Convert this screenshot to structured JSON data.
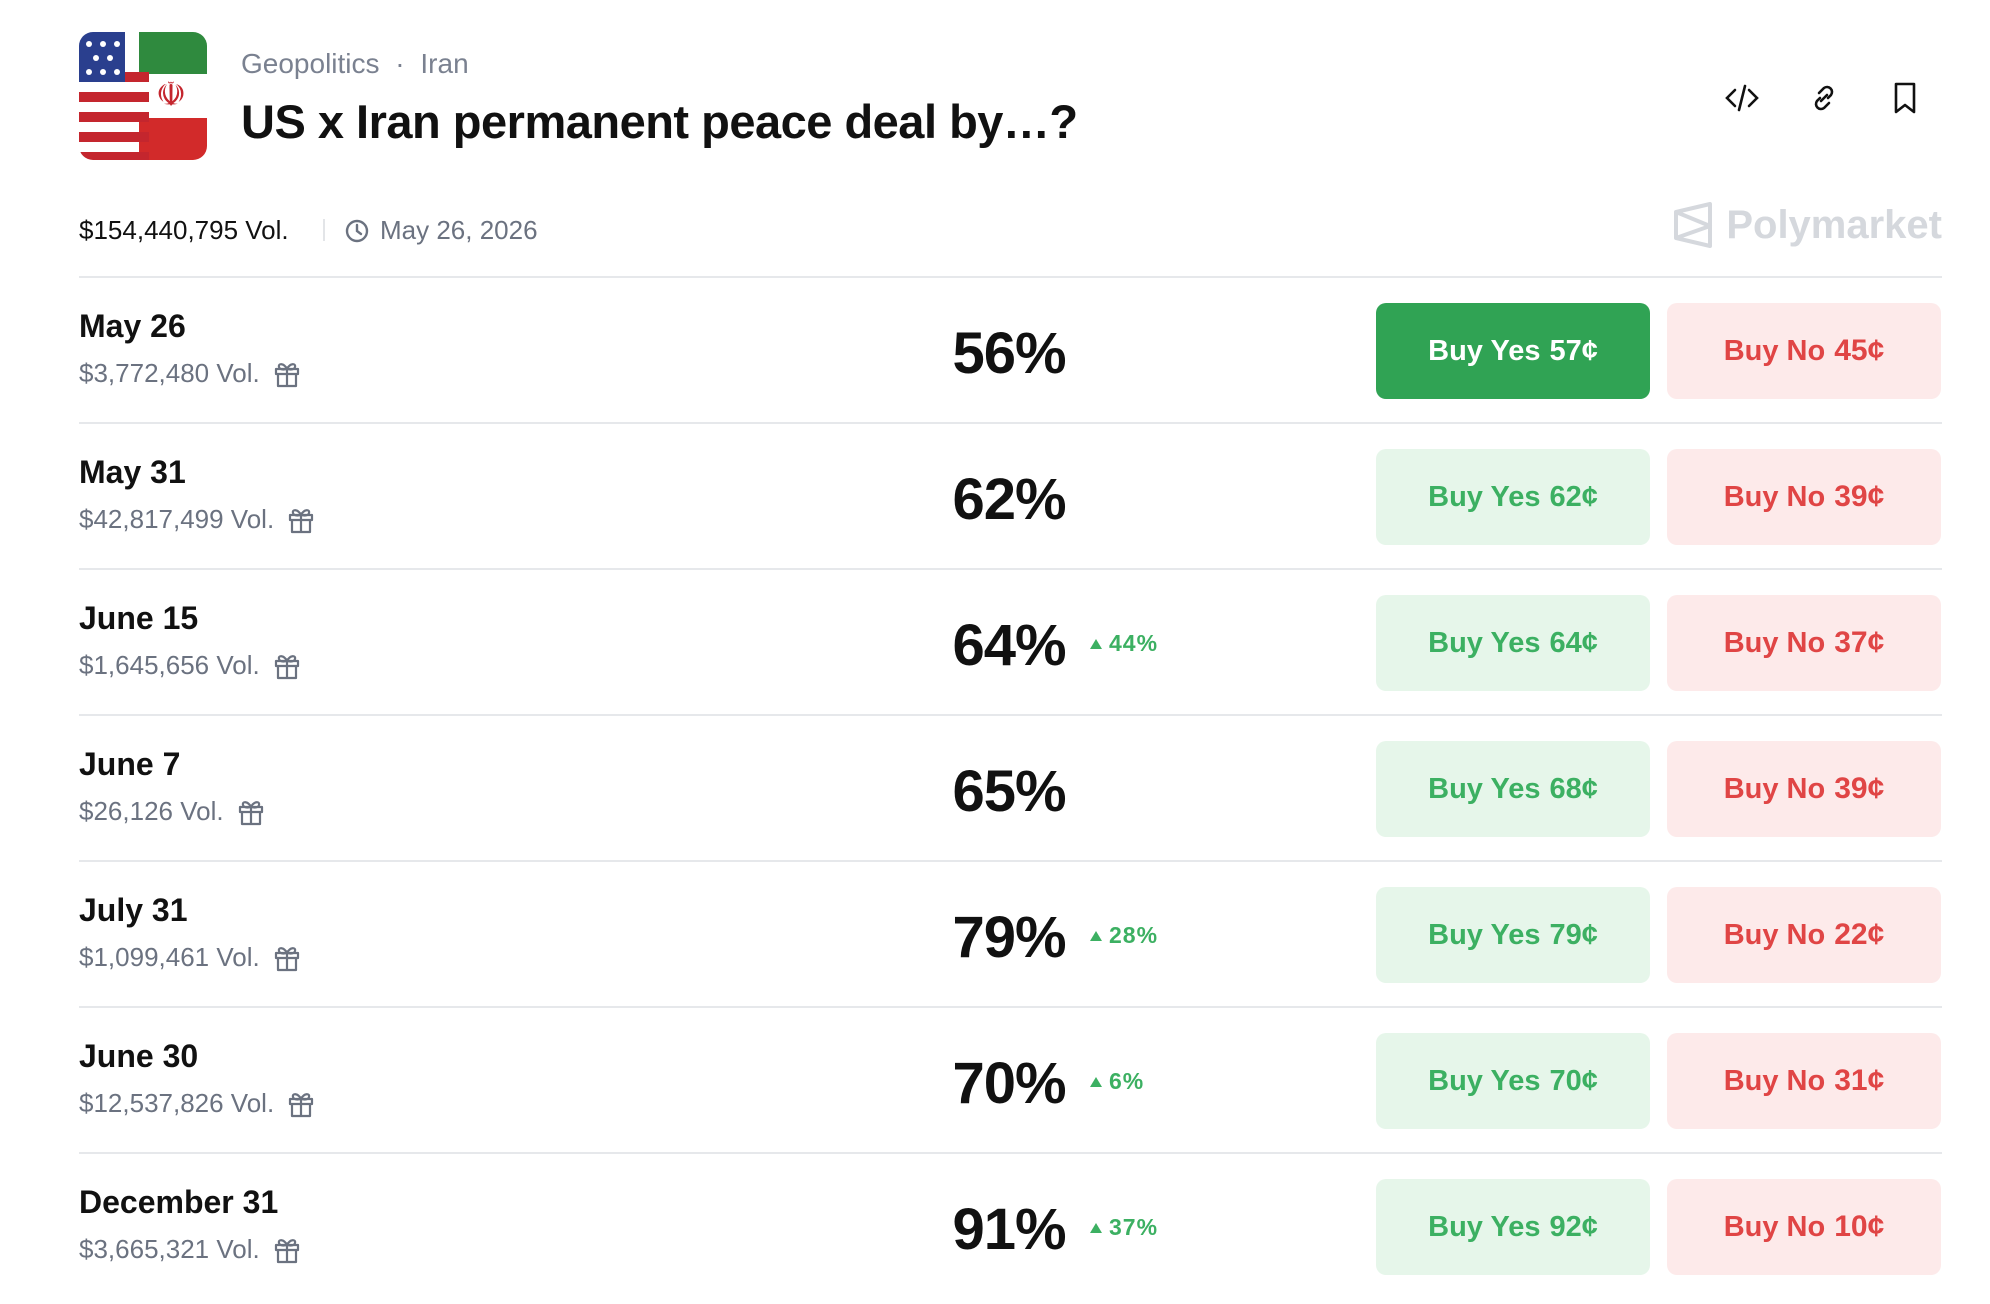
{
  "header": {
    "category": "Geopolitics",
    "subcategory": "Iran",
    "title": "US x Iran permanent peace deal by…?"
  },
  "meta": {
    "volume": "$154,440,795 Vol.",
    "date": "May 26, 2026",
    "brand": "Polymarket"
  },
  "outcomes": [
    {
      "label": "May 26",
      "volume": "$3,772,480 Vol.",
      "chance": "56%",
      "yes_label": "Buy Yes",
      "yes_price": "57¢",
      "no_label": "Buy No",
      "no_price": "45¢"
    },
    {
      "label": "May 31",
      "volume": "$42,817,499 Vol.",
      "chance": "62%",
      "yes_label": "Buy Yes",
      "yes_price": "62¢",
      "no_label": "Buy No",
      "no_price": "39¢"
    },
    {
      "label": "June 15",
      "volume": "$1,645,656 Vol.",
      "chance": "64%",
      "change": "44%",
      "yes_label": "Buy Yes",
      "yes_price": "64¢",
      "no_label": "Buy No",
      "no_price": "37¢"
    },
    {
      "label": "June 7",
      "volume": "$26,126 Vol.",
      "chance": "65%",
      "yes_label": "Buy Yes",
      "yes_price": "68¢",
      "no_label": "Buy No",
      "no_price": "39¢"
    },
    {
      "label": "July 31",
      "volume": "$1,099,461 Vol.",
      "chance": "79%",
      "change": "28%",
      "yes_label": "Buy Yes",
      "yes_price": "79¢",
      "no_label": "Buy No",
      "no_price": "22¢"
    },
    {
      "label": "June 30",
      "volume": "$12,537,826 Vol.",
      "chance": "70%",
      "change": "6%",
      "yes_label": "Buy Yes",
      "yes_price": "70¢",
      "no_label": "Buy No",
      "no_price": "31¢"
    },
    {
      "label": "December 31",
      "volume": "$3,665,321 Vol.",
      "chance": "91%",
      "change": "37%",
      "yes_label": "Buy Yes",
      "yes_price": "92¢",
      "no_label": "Buy No",
      "no_price": "10¢"
    }
  ]
}
